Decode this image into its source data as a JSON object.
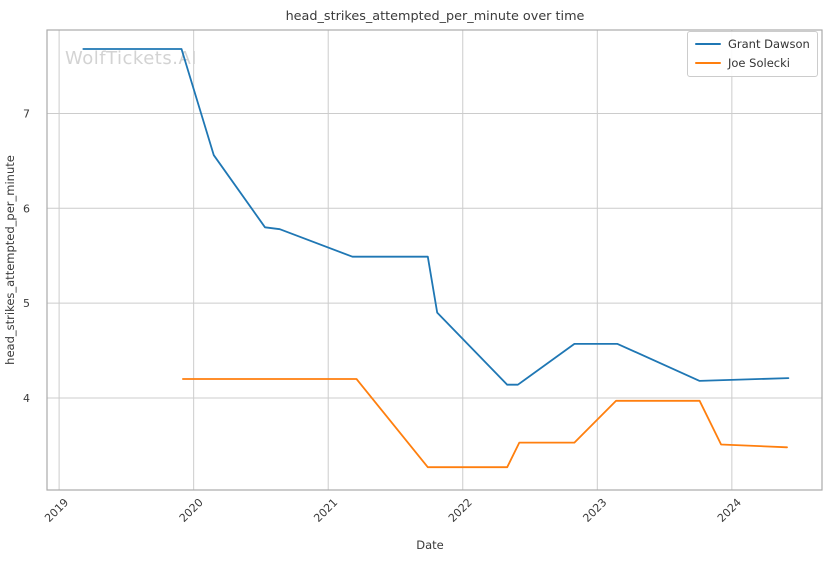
{
  "title": "head_strikes_attempted_per_minute over time",
  "watermark": "WolfTickets.AI",
  "xlabel": "Date",
  "ylabel": "head_strikes_attempted_per_minute",
  "legend": {
    "entries": [
      {
        "label": "Grant Dawson",
        "color": "#1f77b4"
      },
      {
        "label": "Joe Solecki",
        "color": "#ff7f0e"
      }
    ]
  },
  "colors": {
    "grant_dawson": "#1f77b4",
    "joe_solecki": "#ff7f0e",
    "grid": "#cccccc",
    "spine": "#ababab",
    "text": "#3a3a3a",
    "watermark": "#d3d3d3"
  },
  "chart_data": {
    "type": "line",
    "title": "head_strikes_attempted_per_minute over time",
    "xlabel": "Date",
    "ylabel": "head_strikes_attempted_per_minute",
    "x_unit": "decimal_year",
    "xlim": [
      2018.91,
      2024.67
    ],
    "ylim": [
      3.03,
      7.88
    ],
    "xticks": [
      2019,
      2020,
      2021,
      2022,
      2023,
      2024
    ],
    "yticks": [
      4,
      5,
      6,
      7
    ],
    "grid": true,
    "legend_position": "upper right",
    "series": [
      {
        "name": "Grant Dawson",
        "color": "#1f77b4",
        "x": [
          2019.18,
          2019.91,
          2020.15,
          2020.53,
          2020.64,
          2021.18,
          2021.74,
          2021.81,
          2022.33,
          2022.41,
          2022.83,
          2023.15,
          2023.76,
          2024.42
        ],
        "y": [
          7.68,
          7.68,
          6.56,
          5.8,
          5.78,
          5.49,
          5.49,
          4.9,
          4.14,
          4.14,
          4.57,
          4.57,
          4.18,
          4.21
        ]
      },
      {
        "name": "Joe Solecki",
        "color": "#ff7f0e",
        "x": [
          2019.92,
          2021.21,
          2021.74,
          2022.33,
          2022.42,
          2022.83,
          2023.14,
          2023.76,
          2023.92,
          2024.41
        ],
        "y": [
          4.2,
          4.2,
          3.27,
          3.27,
          3.53,
          3.53,
          3.97,
          3.97,
          3.51,
          3.48
        ]
      }
    ]
  }
}
